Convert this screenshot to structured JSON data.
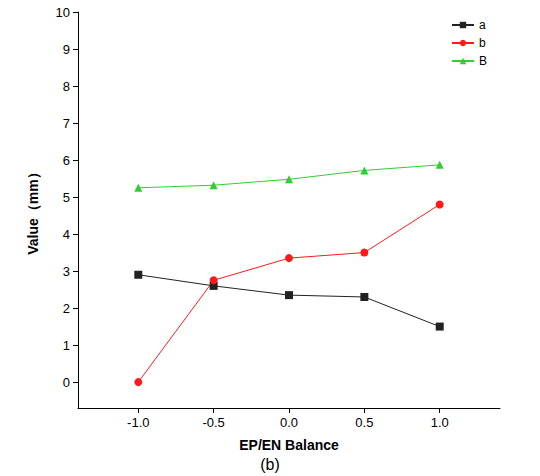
{
  "chart_data": {
    "type": "line",
    "x_label": "EP/EN Balance",
    "y_label": "Value（mm）",
    "annotations": [
      "(b)"
    ],
    "x": [
      -1,
      -0.5,
      0,
      0.5,
      1
    ],
    "series": [
      {
        "name": "a",
        "color": "#222222",
        "marker": "square",
        "line_style": "solid",
        "values": [
          2.9,
          2.6,
          2.35,
          2.3,
          1.5
        ]
      },
      {
        "name": "b",
        "color": "#ff1a1a",
        "marker": "circle",
        "line_style": "solid",
        "values": [
          0,
          2.75,
          3.35,
          3.5,
          4.8
        ]
      },
      {
        "name": "B",
        "color": "#33cc33",
        "marker": "triangle",
        "line_style": "solid",
        "values": [
          5.25,
          5.32,
          5.48,
          5.72,
          5.87
        ]
      }
    ],
    "xlim": [
      -1.4,
      1.4
    ],
    "xticks": [
      {
        "value": -1,
        "label": "-1.0"
      },
      {
        "value": -0.5,
        "label": "-0.5"
      },
      {
        "value": 0,
        "label": "0.0"
      },
      {
        "value": 0.5,
        "label": "0.5"
      },
      {
        "value": 1,
        "label": "1.0"
      }
    ],
    "ylim": [
      -0.7,
      10
    ],
    "yticks": [
      0,
      1,
      2,
      3,
      4,
      5,
      6,
      7,
      8,
      9,
      10
    ],
    "grid": false,
    "legend": "top-right"
  }
}
